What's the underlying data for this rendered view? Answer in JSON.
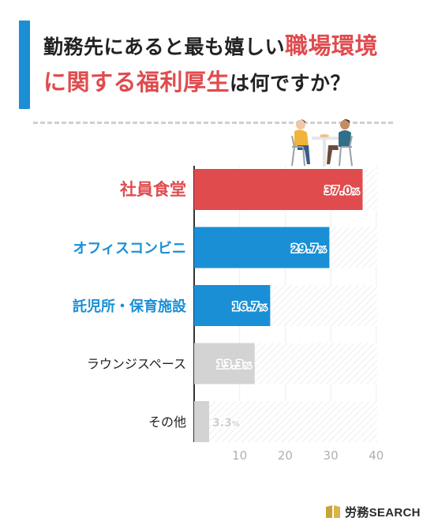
{
  "title": {
    "line1_prefix": "勤務先にあると最も嬉しい",
    "line1_highlight": "職場環境",
    "line2_highlight": "に関する福利厚生",
    "line2_suffix": "は何ですか？"
  },
  "chart_data": {
    "type": "bar",
    "orientation": "horizontal",
    "categories": [
      "社員食堂",
      "オフィスコンビニ",
      "託児所・保育施設",
      "ラウンジスペース",
      "その他"
    ],
    "values": [
      37.0,
      29.7,
      16.7,
      13.3,
      3.3
    ],
    "value_labels": [
      "37.0%",
      "29.7%",
      "16.7%",
      "13.3%",
      "3.3%"
    ],
    "xlim": [
      0,
      40
    ],
    "xticks": [
      "10",
      "20",
      "30",
      "40"
    ],
    "grid": true,
    "colors": {
      "top": "#e04b4e",
      "highlight": "#1a8fd6",
      "other": "#d3d3d3",
      "label_other": "#222222",
      "value_other": "#cfcfcf"
    },
    "category_styles": [
      "top",
      "highlight",
      "highlight",
      "other",
      "other"
    ]
  },
  "logo": {
    "text": "労務SEARCH",
    "color": "#c9a23a"
  },
  "illustration": "people-dining-icon"
}
